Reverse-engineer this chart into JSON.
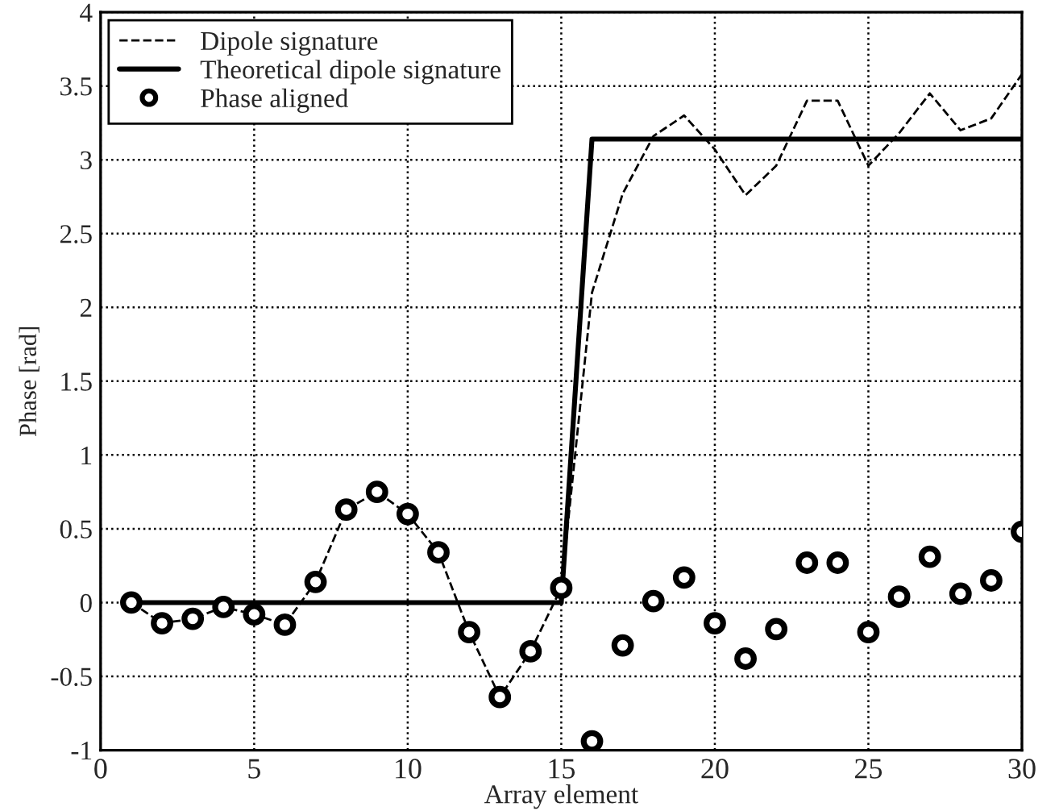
{
  "chart_data": {
    "type": "line",
    "xlabel": "Array element",
    "ylabel": "Phase [rad]",
    "xlim": [
      0,
      30
    ],
    "ylim": [
      -1,
      4
    ],
    "xticks": [
      0,
      5,
      10,
      15,
      20,
      25,
      30
    ],
    "yticks": [
      -1,
      -0.5,
      0,
      0.5,
      1,
      1.5,
      2,
      2.5,
      3,
      3.5,
      4
    ],
    "grid": true,
    "legend": "top left",
    "series": [
      {
        "name": "Dipole signature",
        "line_style": "dashed",
        "color": "#000000",
        "x": [
          1,
          2,
          3,
          4,
          5,
          6,
          7,
          8,
          9,
          10,
          11,
          12,
          13,
          14,
          15,
          16,
          17,
          18,
          19,
          20,
          21,
          22,
          23,
          24,
          25,
          26,
          27,
          28,
          29,
          30
        ],
        "values": [
          0,
          -0.14,
          -0.11,
          -0.03,
          -0.08,
          -0.15,
          0.14,
          0.63,
          0.75,
          0.6,
          0.34,
          -0.2,
          -0.64,
          -0.33,
          0.1,
          2.1,
          2.77,
          3.16,
          3.3,
          3.07,
          2.76,
          2.96,
          3.4,
          3.4,
          2.96,
          3.18,
          3.45,
          3.2,
          3.28,
          3.58
        ]
      },
      {
        "name": "Theoretical dipole signature",
        "line_style": "solid",
        "color": "#000000",
        "x": [
          1,
          15,
          16,
          30
        ],
        "values": [
          0,
          0,
          3.14,
          3.14
        ]
      },
      {
        "name": "Phase aligned",
        "type": "scatter",
        "marker": "circle",
        "color": "#000000",
        "x": [
          1,
          2,
          3,
          4,
          5,
          6,
          7,
          8,
          9,
          10,
          11,
          12,
          13,
          14,
          15,
          16,
          17,
          18,
          19,
          20,
          21,
          22,
          23,
          24,
          25,
          26,
          27,
          28,
          29,
          30
        ],
        "values": [
          0,
          -0.14,
          -0.11,
          -0.03,
          -0.08,
          -0.15,
          0.14,
          0.63,
          0.75,
          0.6,
          0.34,
          -0.2,
          -0.64,
          -0.33,
          0.1,
          -0.94,
          -0.29,
          0.01,
          0.17,
          -0.14,
          -0.38,
          -0.18,
          0.27,
          0.27,
          -0.2,
          0.04,
          0.31,
          0.06,
          0.15,
          0.48
        ]
      }
    ]
  }
}
